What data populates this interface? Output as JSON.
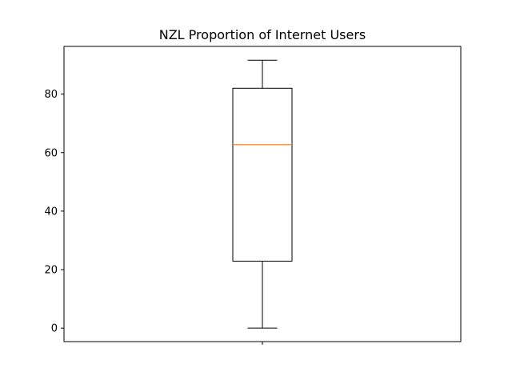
{
  "chart_data": {
    "type": "box",
    "title": "NZL Proportion of Internet Users",
    "xlabel": "",
    "ylabel": "",
    "ylim": [
      -4.6,
      96.3
    ],
    "yticks": [
      0,
      20,
      40,
      60,
      80
    ],
    "ytick_labels": [
      "0",
      "20",
      "40",
      "60",
      "80"
    ],
    "xticks": [
      ""
    ],
    "grid": false,
    "series": [
      {
        "whisker_low": 0.0,
        "q1": 22.9,
        "median": 62.7,
        "q3": 82.0,
        "whisker_high": 91.6
      }
    ],
    "colors": {
      "box": "#000000",
      "median": "#ff7f0e",
      "axes": "#000000"
    }
  }
}
